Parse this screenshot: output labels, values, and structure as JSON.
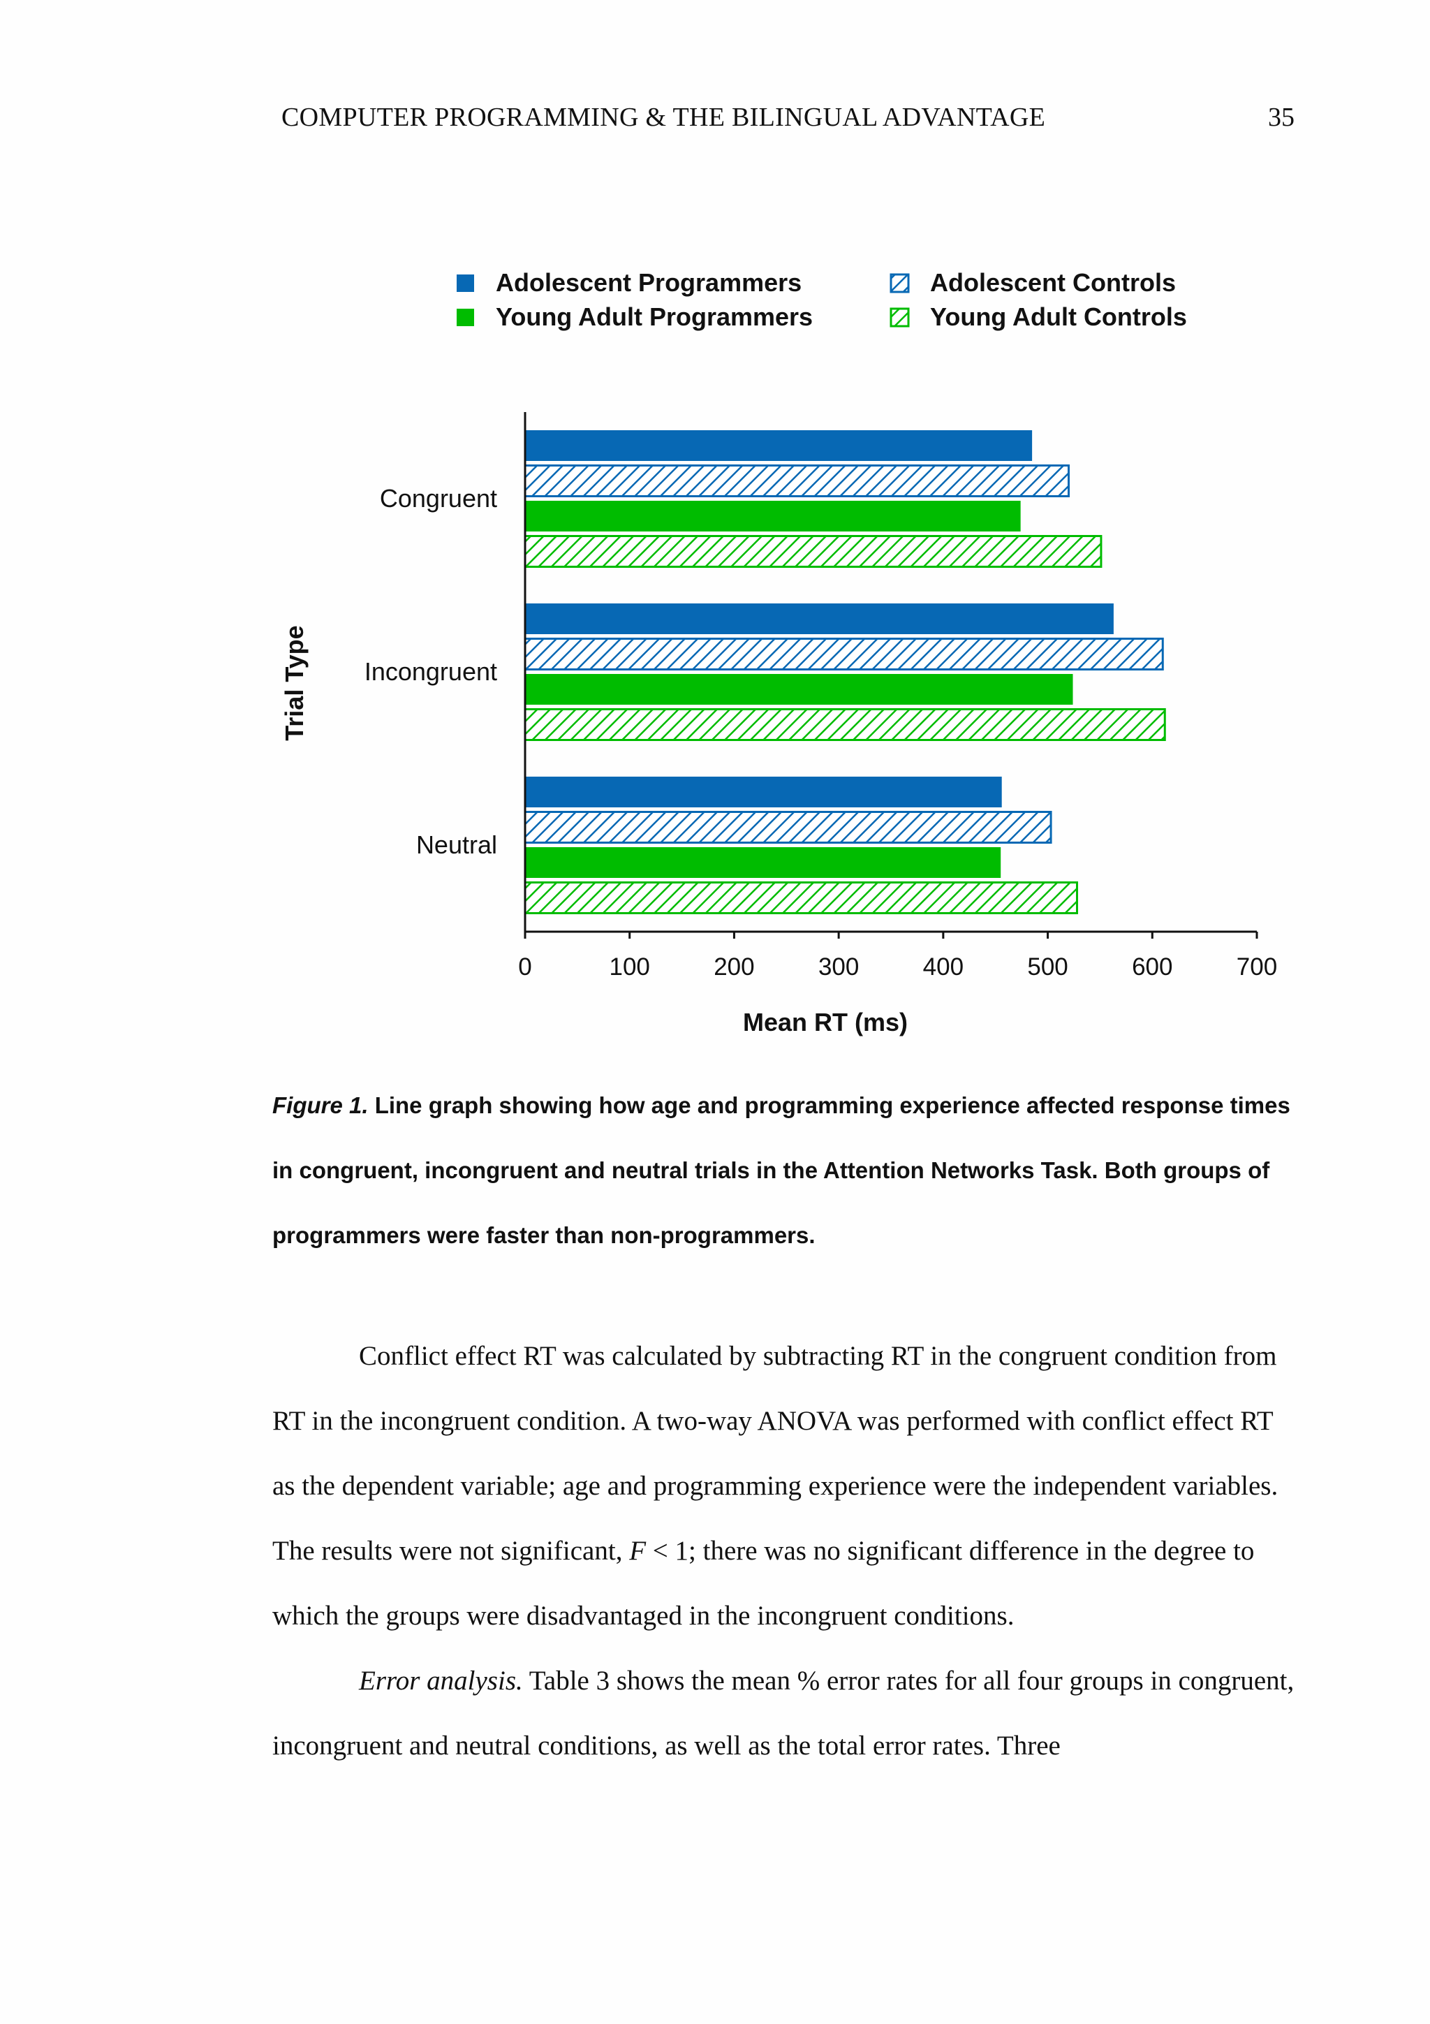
{
  "header": {
    "running_head": "COMPUTER PROGRAMMING & THE BILINGUAL ADVANTAGE",
    "page_number": "35"
  },
  "chart_data": {
    "type": "bar",
    "orientation": "horizontal",
    "categories": [
      "Congruent",
      "Incongruent",
      "Neutral"
    ],
    "series": [
      {
        "name": "Adolescent Programmers",
        "values": [
          485,
          563,
          456
        ],
        "color": "#0768b4",
        "fill": "solid"
      },
      {
        "name": "Adolescent Controls",
        "values": [
          520,
          610,
          503
        ],
        "color": "#0768b4",
        "fill": "hatched"
      },
      {
        "name": "Young Adult Programmers",
        "values": [
          474,
          524,
          455
        ],
        "color": "#00bc00",
        "fill": "solid"
      },
      {
        "name": "Young Adult Controls",
        "values": [
          551,
          612,
          528
        ],
        "color": "#00bc00",
        "fill": "hatched"
      }
    ],
    "xlabel": "Mean RT (ms)",
    "ylabel": "Trial Type",
    "xlim": [
      0,
      700
    ],
    "xticks": [
      "0",
      "100",
      "200",
      "300",
      "400",
      "500",
      "600",
      "700"
    ],
    "legend_position": "top",
    "grid": false
  },
  "caption": {
    "label": "Figure 1.",
    "text": " Line graph showing how age and programming experience affected response times in congruent, incongruent and neutral trials in the Attention Networks Task.  Both groups of programmers were faster than non-programmers."
  },
  "body": {
    "para1": "Conflict effect RT was calculated by subtracting RT in the congruent condition from RT in the incongruent condition.  A two-way ANOVA was performed with conflict effect RT as the dependent variable; age and programming experience were the independent variables.  The results were not significant, ",
    "para1_stat": "F",
    "para1_tail": " < 1; there was no significant difference in the degree to which the groups were disadvantaged in the incongruent conditions.",
    "para2_heading": "Error analysis.",
    "para2": "  Table 3 shows the mean % error rates for all four groups in congruent, incongruent and neutral conditions, as well as the total error rates.  Three"
  }
}
